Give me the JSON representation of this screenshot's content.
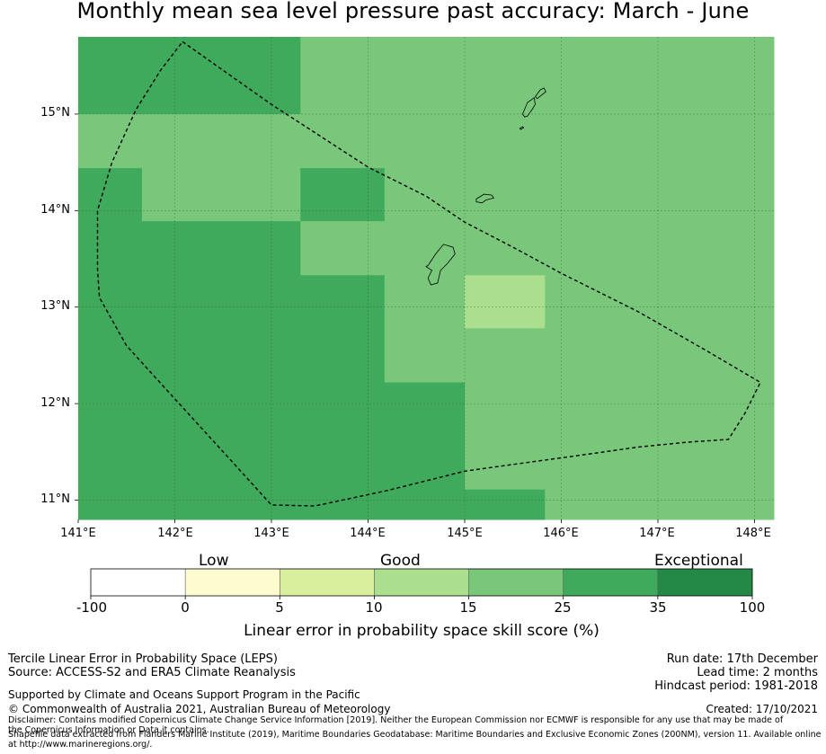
{
  "title": "Monthly mean sea level pressure past accuracy: March - June",
  "map": {
    "lat_labels": [
      "15°N",
      "14°N",
      "13°N",
      "12°N",
      "11°N"
    ],
    "lon_labels": [
      "141°E",
      "142°E",
      "143°E",
      "144°E",
      "145°E",
      "146°E",
      "147°E",
      "148°E"
    ],
    "lon_range": [
      141.0,
      148.2
    ],
    "lat_range": [
      10.8,
      15.8
    ],
    "category_colors": {
      "good_15_25": "#79c77a",
      "good_25_35": "#40aa5c",
      "good_10_15": "#acde8f"
    },
    "cells": [
      {
        "lon": [
          141.0,
          143.3
        ],
        "lat": [
          15.0,
          15.8
        ],
        "cat": "good_25_35"
      },
      {
        "lon": [
          143.3,
          148.2
        ],
        "lat": [
          15.0,
          15.8
        ],
        "cat": "good_15_25"
      },
      {
        "lon": [
          141.0,
          148.2
        ],
        "lat": [
          14.44,
          15.0
        ],
        "cat": "good_15_25"
      },
      {
        "lon": [
          141.0,
          141.66
        ],
        "lat": [
          13.89,
          14.44
        ],
        "cat": "good_25_35"
      },
      {
        "lon": [
          141.66,
          143.3
        ],
        "lat": [
          13.89,
          14.44
        ],
        "cat": "good_15_25"
      },
      {
        "lon": [
          143.3,
          144.17
        ],
        "lat": [
          13.89,
          14.44
        ],
        "cat": "good_25_35"
      },
      {
        "lon": [
          144.17,
          148.2
        ],
        "lat": [
          13.89,
          14.44
        ],
        "cat": "good_15_25"
      },
      {
        "lon": [
          141.0,
          143.3
        ],
        "lat": [
          13.33,
          13.89
        ],
        "cat": "good_25_35"
      },
      {
        "lon": [
          143.3,
          148.2
        ],
        "lat": [
          13.33,
          13.89
        ],
        "cat": "good_15_25"
      },
      {
        "lon": [
          141.0,
          144.17
        ],
        "lat": [
          12.78,
          13.33
        ],
        "cat": "good_25_35"
      },
      {
        "lon": [
          144.17,
          145.0
        ],
        "lat": [
          12.78,
          13.33
        ],
        "cat": "good_15_25"
      },
      {
        "lon": [
          145.0,
          145.83
        ],
        "lat": [
          12.78,
          13.33
        ],
        "cat": "good_10_15"
      },
      {
        "lon": [
          145.83,
          148.2
        ],
        "lat": [
          12.78,
          13.33
        ],
        "cat": "good_15_25"
      },
      {
        "lon": [
          141.0,
          144.17
        ],
        "lat": [
          12.22,
          12.78
        ],
        "cat": "good_25_35"
      },
      {
        "lon": [
          144.17,
          148.2
        ],
        "lat": [
          12.22,
          12.78
        ],
        "cat": "good_15_25"
      },
      {
        "lon": [
          141.0,
          145.0
        ],
        "lat": [
          11.11,
          12.22
        ],
        "cat": "good_25_35"
      },
      {
        "lon": [
          145.0,
          148.2
        ],
        "lat": [
          11.11,
          12.22
        ],
        "cat": "good_15_25"
      },
      {
        "lon": [
          141.0,
          145.0
        ],
        "lat": [
          10.8,
          11.11
        ],
        "cat": "good_25_35"
      },
      {
        "lon": [
          145.0,
          145.83
        ],
        "lat": [
          10.8,
          11.11
        ],
        "cat": "good_25_35"
      },
      {
        "lon": [
          145.83,
          148.2
        ],
        "lat": [
          10.8,
          11.11
        ],
        "cat": "good_15_25"
      }
    ],
    "eez_boundary": [
      [
        142.08,
        15.75
      ],
      [
        143.0,
        15.1
      ],
      [
        144.0,
        14.45
      ],
      [
        144.6,
        14.15
      ],
      [
        145.0,
        13.88
      ],
      [
        145.5,
        13.62
      ],
      [
        146.0,
        13.35
      ],
      [
        146.8,
        12.95
      ],
      [
        147.5,
        12.55
      ],
      [
        148.06,
        12.22
      ],
      [
        147.9,
        11.9
      ],
      [
        147.73,
        11.63
      ],
      [
        147.3,
        11.6
      ],
      [
        146.8,
        11.55
      ],
      [
        146.3,
        11.48
      ],
      [
        145.5,
        11.37
      ],
      [
        145.0,
        11.3
      ],
      [
        144.2,
        11.1
      ],
      [
        143.45,
        10.94
      ],
      [
        143.0,
        10.95
      ],
      [
        142.5,
        11.5
      ],
      [
        142.0,
        12.05
      ],
      [
        141.5,
        12.6
      ],
      [
        141.22,
        13.1
      ],
      [
        141.2,
        13.4
      ],
      [
        141.2,
        14.0
      ],
      [
        141.35,
        14.5
      ],
      [
        141.6,
        15.05
      ],
      [
        141.85,
        15.45
      ],
      [
        142.08,
        15.75
      ]
    ],
    "islands": [
      [
        [
          144.62,
          13.43
        ],
        [
          144.7,
          13.55
        ],
        [
          144.78,
          13.65
        ],
        [
          144.88,
          13.62
        ],
        [
          144.9,
          13.55
        ],
        [
          144.82,
          13.45
        ],
        [
          144.75,
          13.38
        ],
        [
          144.72,
          13.25
        ],
        [
          144.65,
          13.23
        ],
        [
          144.62,
          13.3
        ],
        [
          144.66,
          13.38
        ],
        [
          144.6,
          13.42
        ]
      ],
      [
        [
          145.12,
          14.12
        ],
        [
          145.2,
          14.17
        ],
        [
          145.28,
          14.16
        ],
        [
          145.3,
          14.13
        ],
        [
          145.22,
          14.11
        ],
        [
          145.18,
          14.08
        ],
        [
          145.12,
          14.09
        ]
      ],
      [
        [
          145.6,
          15.0
        ],
        [
          145.65,
          15.12
        ],
        [
          145.72,
          15.17
        ],
        [
          145.73,
          15.1
        ],
        [
          145.7,
          15.05
        ],
        [
          145.65,
          14.98
        ],
        [
          145.62,
          14.97
        ]
      ],
      [
        [
          145.73,
          15.18
        ],
        [
          145.78,
          15.25
        ],
        [
          145.82,
          15.27
        ],
        [
          145.84,
          15.23
        ],
        [
          145.8,
          15.2
        ],
        [
          145.75,
          15.16
        ]
      ],
      [
        [
          145.57,
          14.85
        ],
        [
          145.6,
          14.87
        ],
        [
          145.61,
          14.86
        ],
        [
          145.58,
          14.84
        ]
      ]
    ]
  },
  "colorbar": {
    "headings": [
      "Low",
      "Good",
      "Exceptional"
    ],
    "ticks": [
      "-100",
      "0",
      "5",
      "10",
      "15",
      "25",
      "35",
      "100"
    ],
    "colors": [
      "#ffffff",
      "#fefccf",
      "#daef9e",
      "#acde8f",
      "#79c77a",
      "#40aa5c",
      "#248847"
    ],
    "label": "Linear error in probability space skill score (%)"
  },
  "info": {
    "left1": "Tercile Linear Error in Probability Space (LEPS)",
    "left2": "Source: ACCESS-S2 and ERA5 Climate Reanalysis",
    "left3": "Supported by Climate and Oceans Support Program in the Pacific",
    "left4": "© Commonwealth of Australia 2021, Australian Bureau of Meteorology",
    "right1": "Run date: 17th December",
    "right2": "Lead time: 2 months",
    "right3": "Hindcast period: 1981-2018",
    "right4": "Created: 17/10/2021",
    "disclaimer": "Disclaimer: Contains modified Copernicus Climate Change Service Information [2019]. Neither the European Commission nor ECMWF is responsible for any use that may be made of the Copernicus Information or Data it contains.",
    "shapefile": "Shapefile data extracted from Flanders Marine Institute (2019), Maritime Boundaries Geodatabase: Maritime Boundaries and Exclusive Economic Zones (200NM), version 11. Available online at http://www.marineregions.org/."
  }
}
